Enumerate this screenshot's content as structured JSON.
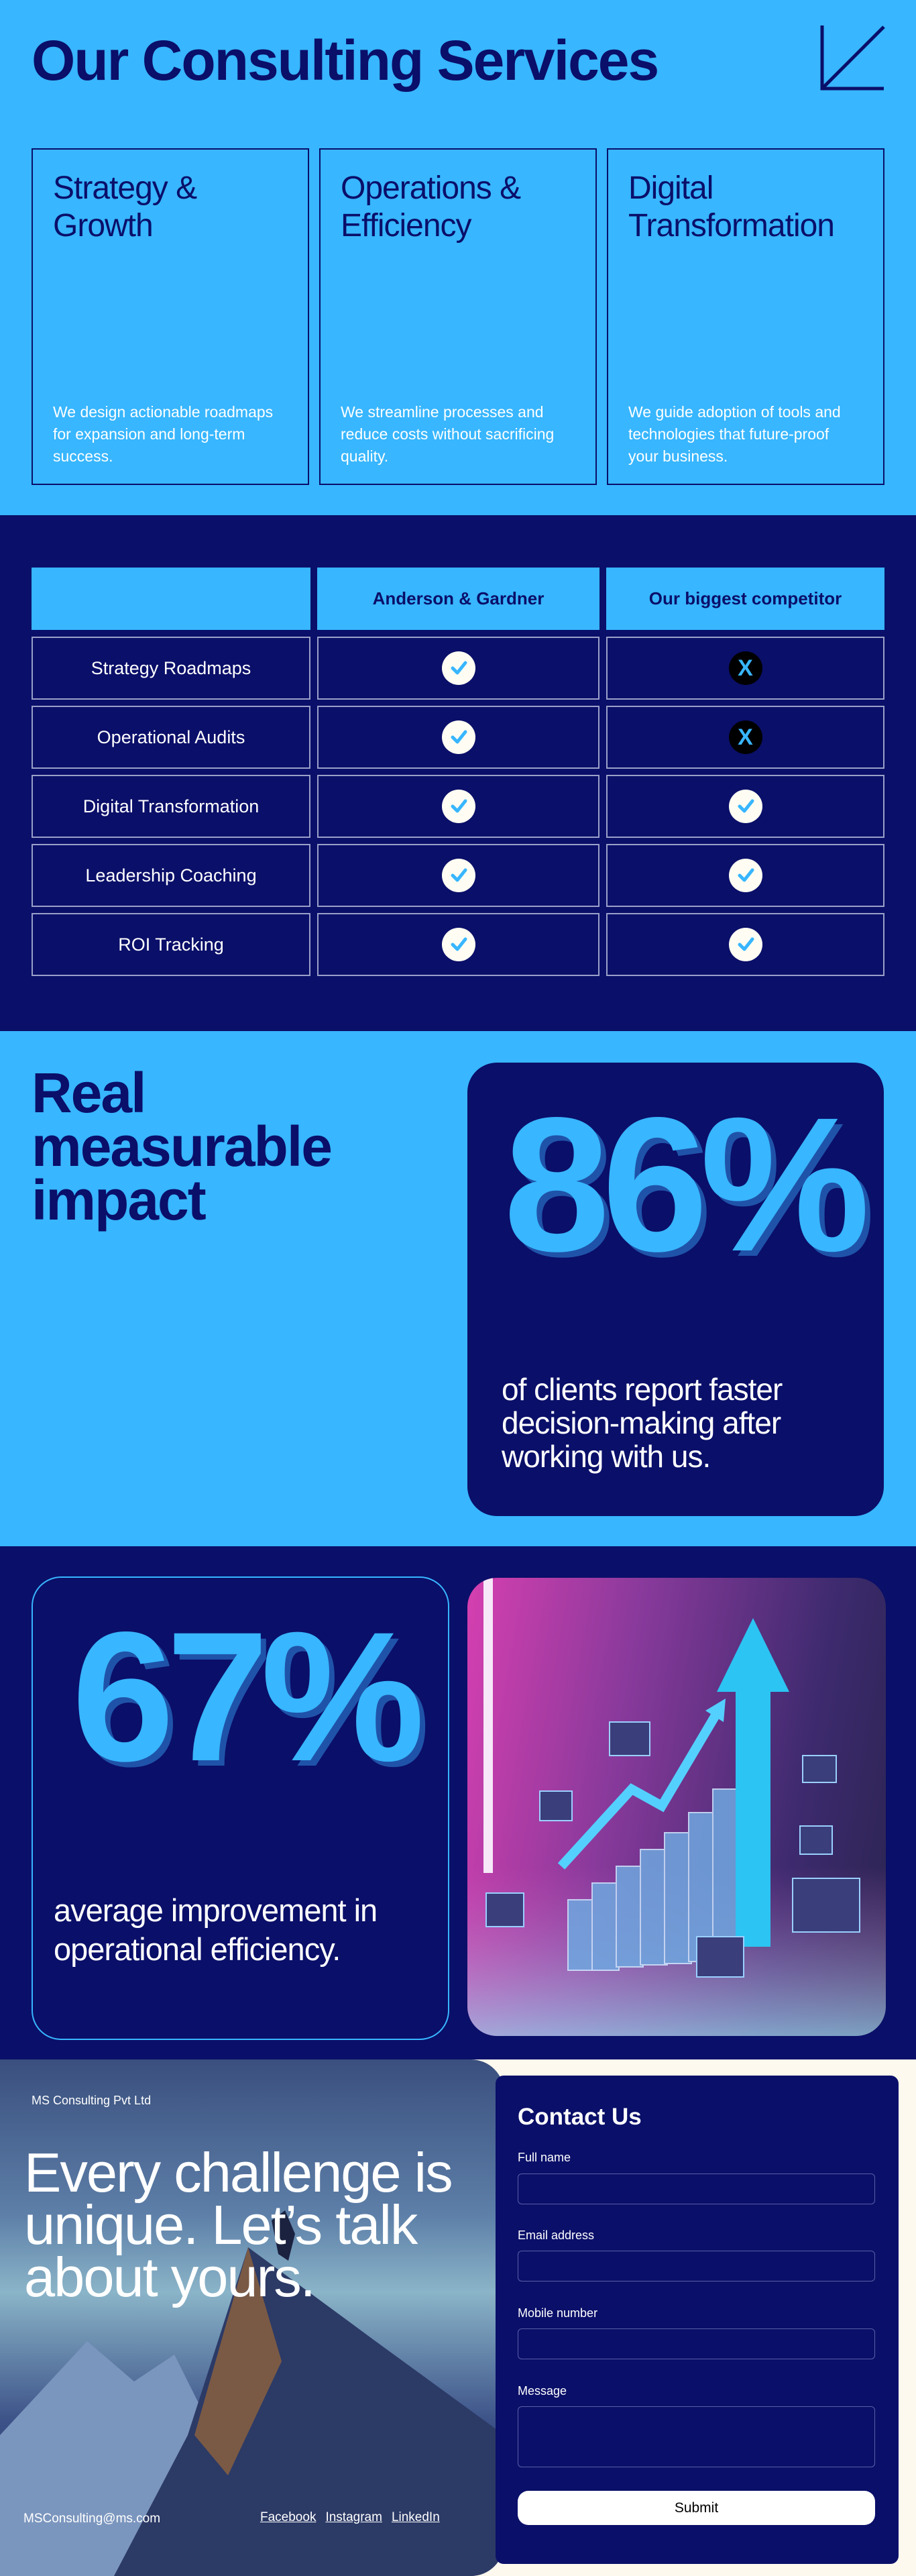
{
  "services": {
    "title": "Our Consulting Services",
    "cards": [
      {
        "title": "Strategy & Growth",
        "description": "We design actionable roadmaps for expansion and long-term success."
      },
      {
        "title": "Operations & Efficiency",
        "description": "We streamline processes and reduce costs without sacrificing quality."
      },
      {
        "title": "Digital Transformation",
        "description": "We guide adoption of tools and technologies that future-proof your business."
      }
    ]
  },
  "comparison": {
    "headers": [
      "",
      "Anderson & Gardner",
      "Our biggest competitor"
    ],
    "rows": [
      {
        "feature": "Strategy Roadmaps",
        "us": true,
        "competitor": false
      },
      {
        "feature": "Operational Audits",
        "us": true,
        "competitor": false
      },
      {
        "feature": "Digital Transformation",
        "us": true,
        "competitor": true
      },
      {
        "feature": "Leadership Coaching",
        "us": true,
        "competitor": true
      },
      {
        "feature": "ROI Tracking",
        "us": true,
        "competitor": true
      }
    ],
    "no_symbol": "X"
  },
  "impact": {
    "heading": "Real measurable impact",
    "stat1": {
      "value": "86%",
      "description": "of clients report faster decision-making after working with us."
    },
    "stat2": {
      "value": "67%",
      "description": "average improvement in operational efficiency."
    }
  },
  "contact": {
    "company": "MS Consulting Pvt Ltd",
    "headline": "Every challenge is unique. Let’s talk about yours.",
    "email": "MSConsulting@ms.com",
    "links": [
      "Facebook",
      "Instagram",
      "LinkedIn"
    ],
    "form": {
      "title": "Contact Us",
      "fields": [
        {
          "label": "Full name",
          "value": ""
        },
        {
          "label": "Email address",
          "value": ""
        },
        {
          "label": "Mobile number",
          "value": ""
        },
        {
          "label": "Message",
          "value": ""
        }
      ],
      "submit": "Submit"
    }
  },
  "colors": {
    "light_blue": "#38b6ff",
    "navy": "#0a0f69",
    "cream": "#fdf9ee"
  }
}
